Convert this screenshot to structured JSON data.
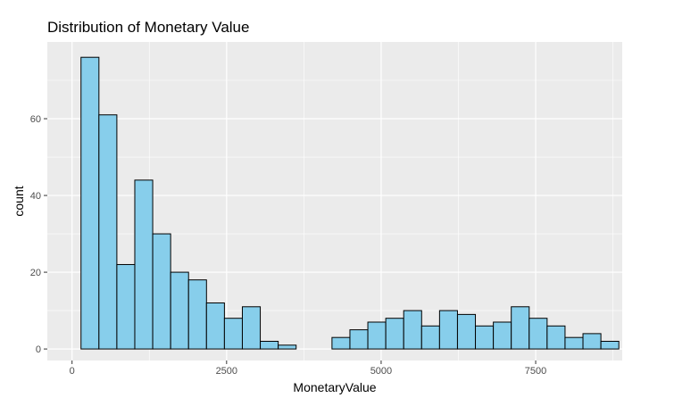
{
  "chart_data": {
    "type": "bar",
    "title": "Distribution of Monetary Value",
    "xlabel": "MonetaryValue",
    "ylabel": "count",
    "xlim": [
      -400,
      8900
    ],
    "ylim": [
      -3,
      80
    ],
    "bin_width": 290,
    "first_bin_start": 145,
    "x_ticks": [
      0,
      2500,
      5000,
      7500
    ],
    "x_tick_labels": [
      "0",
      "2500",
      "5000",
      "7500"
    ],
    "y_ticks": [
      0,
      20,
      40,
      60
    ],
    "y_tick_labels": [
      "0",
      "20",
      "40",
      "60"
    ],
    "values": [
      76,
      61,
      22,
      44,
      30,
      20,
      18,
      12,
      8,
      11,
      2,
      1,
      0,
      0,
      3,
      5,
      7,
      8,
      10,
      6,
      10,
      9,
      6,
      7,
      11,
      8,
      6,
      3,
      4,
      2
    ],
    "grid": true,
    "colors": {
      "panel": "#ebebeb",
      "grid_major": "#ffffff",
      "bar_fill": "#87ceeb",
      "bar_stroke": "#000000",
      "tick": "#333333"
    }
  }
}
